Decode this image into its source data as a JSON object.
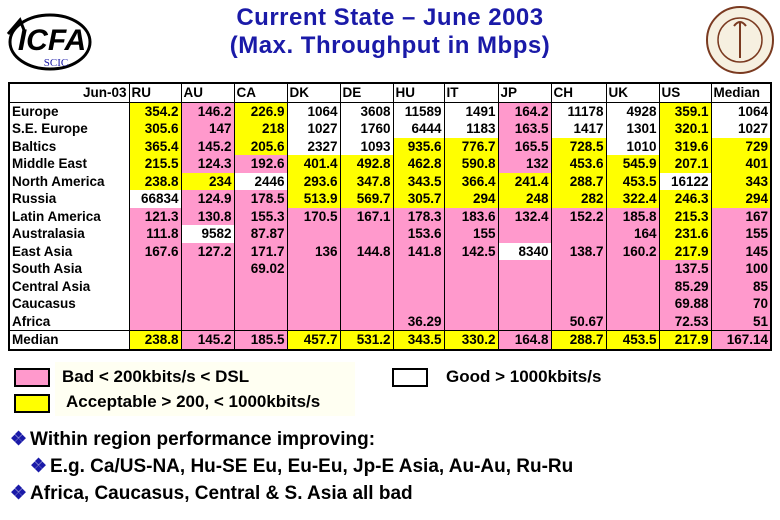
{
  "logo": {
    "name": "ICFA",
    "sub": "SCIC"
  },
  "title": [
    "Current State – June 2003",
    "(Max. Throughput in Mbps)"
  ],
  "table": {
    "corner": "Jun-03",
    "columns": [
      "RU",
      "AU",
      "CA",
      "DK",
      "DE",
      "HU",
      "IT",
      "JP",
      "CH",
      "UK",
      "US",
      "Median"
    ],
    "rows": [
      {
        "label": "Europe",
        "values": [
          354.2,
          146.2,
          226.9,
          1064,
          3608,
          11589,
          1491,
          164.2,
          11178,
          4928,
          359.1,
          1064
        ],
        "colors": [
          "#ff0",
          "#f9c",
          "#ff0",
          "#fff",
          "#fff",
          "#fff",
          "#fff",
          "#f9c",
          "#fff",
          "#fff",
          "#ff0",
          "#fff"
        ]
      },
      {
        "label": "S.E. Europe",
        "values": [
          305.6,
          147,
          218,
          1027,
          1760,
          6444,
          1183,
          163.5,
          1417,
          1301,
          320.1,
          1027
        ],
        "colors": [
          "#ff0",
          "#f9c",
          "#ff0",
          "#fff",
          "#fff",
          "#fff",
          "#fff",
          "#f9c",
          "#fff",
          "#fff",
          "#ff0",
          "#fff"
        ]
      },
      {
        "label": "Baltics",
        "values": [
          365.4,
          145.2,
          205.6,
          2327,
          1093,
          935.6,
          776.7,
          165.5,
          728.5,
          1010,
          319.6,
          729
        ],
        "colors": [
          "#ff0",
          "#f9c",
          "#ff0",
          "#fff",
          "#fff",
          "#ff0",
          "#ff0",
          "#f9c",
          "#ff0",
          "#fff",
          "#ff0",
          "#ff0"
        ]
      },
      {
        "label": "Middle East",
        "values": [
          215.5,
          124.3,
          192.6,
          401.4,
          492.8,
          462.8,
          590.8,
          132,
          453.6,
          545.9,
          207.1,
          401
        ],
        "colors": [
          "#ff0",
          "#f9c",
          "#f9c",
          "#ff0",
          "#ff0",
          "#ff0",
          "#ff0",
          "#f9c",
          "#ff0",
          "#ff0",
          "#ff0",
          "#ff0"
        ]
      },
      {
        "label": "North America",
        "values": [
          238.8,
          234,
          2446,
          293.6,
          347.8,
          343.5,
          366.4,
          241.4,
          288.7,
          453.5,
          16122,
          343
        ],
        "colors": [
          "#ff0",
          "#ff0",
          "#fff",
          "#ff0",
          "#ff0",
          "#ff0",
          "#ff0",
          "#ff0",
          "#ff0",
          "#ff0",
          "#fff",
          "#ff0"
        ]
      },
      {
        "label": "Russia",
        "values": [
          66834,
          124.9,
          178.5,
          513.9,
          569.7,
          305.7,
          294,
          248,
          282,
          322.4,
          246.3,
          294
        ],
        "colors": [
          "#fff",
          "#f9c",
          "#f9c",
          "#ff0",
          "#ff0",
          "#ff0",
          "#ff0",
          "#ff0",
          "#ff0",
          "#ff0",
          "#ff0",
          "#ff0"
        ]
      },
      {
        "label": "Latin America",
        "values": [
          121.3,
          130.8,
          155.3,
          170.5,
          167.1,
          178.3,
          183.6,
          132.4,
          152.2,
          185.8,
          215.3,
          167
        ],
        "colors": [
          "#f9c",
          "#f9c",
          "#f9c",
          "#f9c",
          "#f9c",
          "#f9c",
          "#f9c",
          "#f9c",
          "#f9c",
          "#f9c",
          "#ff0",
          "#f9c"
        ]
      },
      {
        "label": "Australasia",
        "values": [
          111.8,
          9582,
          87.87,
          null,
          null,
          153.6,
          155,
          null,
          null,
          164,
          231.6,
          155
        ],
        "colors": [
          "#f9c",
          "#fff",
          "#f9c",
          "#f9c",
          "#f9c",
          "#f9c",
          "#f9c",
          "#f9c",
          "#f9c",
          "#f9c",
          "#ff0",
          "#f9c"
        ]
      },
      {
        "label": "East Asia",
        "values": [
          167.6,
          127.2,
          171.7,
          136,
          144.8,
          141.8,
          142.5,
          8340,
          138.7,
          160.2,
          217.9,
          145
        ],
        "colors": [
          "#f9c",
          "#f9c",
          "#f9c",
          "#f9c",
          "#f9c",
          "#f9c",
          "#f9c",
          "#fff",
          "#f9c",
          "#f9c",
          "#ff0",
          "#f9c"
        ]
      },
      {
        "label": "South Asia",
        "values": [
          null,
          null,
          69.02,
          null,
          null,
          null,
          null,
          null,
          null,
          null,
          137.5,
          100
        ],
        "colors": [
          "#f9c",
          "#f9c",
          "#f9c",
          "#f9c",
          "#f9c",
          "#f9c",
          "#f9c",
          "#f9c",
          "#f9c",
          "#f9c",
          "#f9c",
          "#f9c"
        ]
      },
      {
        "label": "Central Asia",
        "values": [
          null,
          null,
          null,
          null,
          null,
          null,
          null,
          null,
          null,
          null,
          85.29,
          85
        ],
        "colors": [
          "#f9c",
          "#f9c",
          "#f9c",
          "#f9c",
          "#f9c",
          "#f9c",
          "#f9c",
          "#f9c",
          "#f9c",
          "#f9c",
          "#f9c",
          "#f9c"
        ]
      },
      {
        "label": "Caucasus",
        "values": [
          null,
          null,
          null,
          null,
          null,
          null,
          null,
          null,
          null,
          null,
          69.88,
          70
        ],
        "colors": [
          "#f9c",
          "#f9c",
          "#f9c",
          "#f9c",
          "#f9c",
          "#f9c",
          "#f9c",
          "#f9c",
          "#f9c",
          "#f9c",
          "#f9c",
          "#f9c"
        ]
      },
      {
        "label": "Africa",
        "values": [
          null,
          null,
          null,
          null,
          null,
          36.29,
          null,
          null,
          50.67,
          null,
          72.53,
          51
        ],
        "colors": [
          "#f9c",
          "#f9c",
          "#f9c",
          "#f9c",
          "#f9c",
          "#f9c",
          "#f9c",
          "#f9c",
          "#f9c",
          "#f9c",
          "#f9c",
          "#f9c"
        ]
      },
      {
        "label": "Median",
        "values": [
          238.8,
          145.2,
          185.5,
          457.7,
          531.2,
          343.5,
          330.2,
          164.8,
          288.7,
          453.5,
          217.9,
          167.14
        ],
        "colors": [
          "#ff0",
          "#f9c",
          "#f9c",
          "#ff0",
          "#ff0",
          "#ff0",
          "#ff0",
          "#f9c",
          "#ff0",
          "#ff0",
          "#ff0",
          "#f9c"
        ]
      }
    ]
  },
  "legend": [
    {
      "label": "Bad < 200kbits/s < DSL",
      "color": "#f9c"
    },
    {
      "label": "Acceptable > 200, < 1000kbits/s",
      "color": "#ff0"
    },
    {
      "label": "Good > 1000kbits/s",
      "color": "#fff"
    }
  ],
  "bullets": [
    {
      "text": "Within region performance improving:",
      "sub": "E.g. Ca/US-NA, Hu-SE Eu, Eu-Eu, Jp-E Asia, Au-Au, Ru-Ru"
    },
    {
      "text": "Africa, Caucasus, Central & S. Asia all bad"
    }
  ]
}
